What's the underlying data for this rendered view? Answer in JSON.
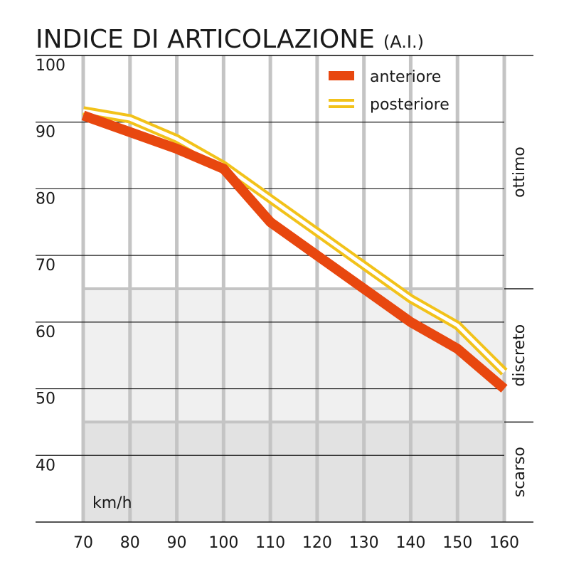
{
  "chart_data": {
    "type": "line",
    "title": "INDICE DI ARTICOLAZIONE",
    "subtitle": "(A.I.)",
    "xlabel": "km/h",
    "ylabel": "",
    "x": [
      70,
      80,
      90,
      100,
      110,
      120,
      130,
      140,
      150,
      160
    ],
    "xlim": [
      70,
      160
    ],
    "ylim": [
      30,
      100
    ],
    "x_ticks": [
      "70",
      "80",
      "90",
      "100",
      "110",
      "120",
      "130",
      "140",
      "150",
      "160"
    ],
    "y_ticks": [
      "100",
      "90",
      "80",
      "70",
      "60",
      "50",
      "40"
    ],
    "grid": true,
    "legend_position": "top-right",
    "series": [
      {
        "name": "anteriore",
        "color": "#e8470f",
        "style": "thick-solid",
        "values": [
          91,
          88.5,
          86,
          83,
          75,
          70,
          65,
          60,
          56,
          50
        ]
      },
      {
        "name": "posteriore",
        "color": "#f2c21a",
        "style": "double-line",
        "values": [
          91.7,
          90.5,
          87.5,
          83.5,
          78.5,
          73.5,
          68.5,
          63.5,
          59.5,
          52.5
        ]
      }
    ],
    "zones": [
      {
        "label": "ottimo",
        "from": 65,
        "to": 100,
        "color": "#ffffff"
      },
      {
        "label": "discreto",
        "from": 45,
        "to": 65,
        "color": "#f0f0f0"
      },
      {
        "label": "scarso",
        "from": 30,
        "to": 45,
        "color": "#e2e2e2"
      }
    ]
  }
}
